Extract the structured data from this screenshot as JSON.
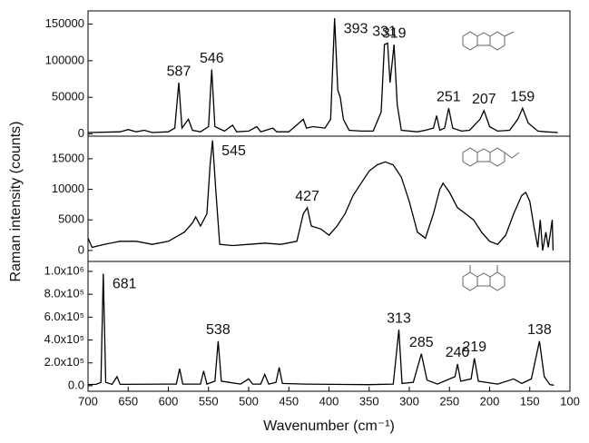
{
  "chart_data": [
    {
      "type": "line",
      "x": [
        700,
        660,
        650,
        640,
        630,
        620,
        600,
        592,
        587,
        583,
        575,
        570,
        560,
        550,
        546,
        542,
        530,
        520,
        515,
        500,
        490,
        485,
        470,
        465,
        450,
        432,
        428,
        420,
        405,
        398,
        393,
        389,
        386,
        382,
        375,
        360,
        345,
        335,
        331,
        327,
        324,
        319,
        315,
        310,
        290,
        280,
        270,
        266,
        262,
        256,
        251,
        246,
        235,
        225,
        212,
        207,
        200,
        190,
        175,
        165,
        159,
        152,
        140,
        130,
        115
      ],
      "series": [
        {
          "color": "#000000",
          "values": [
            2000,
            3000,
            6000,
            3000,
            5000,
            2000,
            3000,
            8000,
            70000,
            8000,
            20000,
            5000,
            3000,
            10000,
            88000,
            10000,
            4000,
            12000,
            3000,
            4000,
            10000,
            3000,
            8000,
            3000,
            3000,
            20000,
            8000,
            10000,
            8000,
            20000,
            158000,
            60000,
            50000,
            20000,
            5000,
            4000,
            4000,
            30000,
            122000,
            124000,
            70000,
            122000,
            40000,
            5000,
            3000,
            5000,
            8000,
            25000,
            5000,
            8000,
            35000,
            8000,
            4000,
            5000,
            20000,
            32000,
            10000,
            4000,
            5000,
            20000,
            35000,
            15000,
            4000,
            3000,
            2000
          ]
        }
      ],
      "xlim": [
        700,
        100
      ],
      "ylim": [
        -3000,
        168000
      ],
      "yticks": [
        0,
        50000,
        100000,
        150000
      ],
      "annotations": [
        {
          "label": "587",
          "x": 587,
          "y": 70000
        },
        {
          "label": "546",
          "x": 546,
          "y": 88000
        },
        {
          "label": "393",
          "x": 393,
          "y": 158000
        },
        {
          "label": "331",
          "x": 331,
          "y": 124000
        },
        {
          "label": "319",
          "x": 319,
          "y": 122000
        },
        {
          "label": "251",
          "x": 251,
          "y": 35000
        },
        {
          "label": "207",
          "x": 207,
          "y": 32000
        },
        {
          "label": "159",
          "x": 159,
          "y": 35000
        }
      ]
    },
    {
      "type": "line",
      "x": [
        700,
        695,
        680,
        660,
        640,
        620,
        600,
        580,
        570,
        566,
        560,
        552,
        548,
        545,
        541,
        536,
        520,
        500,
        480,
        460,
        440,
        432,
        427,
        422,
        410,
        400,
        390,
        380,
        370,
        360,
        350,
        340,
        330,
        320,
        310,
        300,
        290,
        280,
        270,
        262,
        258,
        250,
        240,
        230,
        220,
        210,
        200,
        190,
        180,
        170,
        160,
        155,
        150,
        145,
        140,
        137,
        134,
        130,
        127,
        122,
        121
      ],
      "series": [
        {
          "color": "#000000",
          "values": [
            2000,
            500,
            1000,
            1500,
            1500,
            1000,
            1500,
            3000,
            4500,
            5500,
            4000,
            6000,
            14000,
            18000,
            10000,
            1000,
            800,
            1000,
            1200,
            1000,
            1500,
            6000,
            7000,
            4000,
            3500,
            2500,
            4000,
            6000,
            9000,
            11000,
            13000,
            14000,
            14500,
            14000,
            12000,
            8000,
            3000,
            2000,
            6000,
            10000,
            11000,
            9500,
            7000,
            6000,
            5000,
            3000,
            1500,
            1000,
            2500,
            6000,
            9000,
            9500,
            8000,
            4000,
            500,
            5000,
            0,
            3000,
            500,
            5000,
            0
          ]
        }
      ],
      "xlim": [
        700,
        100
      ],
      "ylim": [
        -1800,
        18700
      ],
      "yticks": [
        0,
        5000,
        10000,
        15000
      ],
      "ylabel": "Raman intensity (counts)",
      "annotations": [
        {
          "label": "545",
          "x": 545,
          "y": 18000
        },
        {
          "label": "427",
          "x": 427,
          "y": 7000
        }
      ]
    },
    {
      "type": "line",
      "x": [
        700,
        690,
        684,
        681,
        678,
        670,
        664,
        660,
        600,
        590,
        586,
        582,
        560,
        556,
        552,
        542,
        538,
        534,
        510,
        500,
        495,
        485,
        480,
        475,
        466,
        462,
        458,
        430,
        350,
        320,
        313,
        309,
        295,
        285,
        278,
        265,
        243,
        240,
        236,
        223,
        219,
        214,
        190,
        170,
        160,
        148,
        138,
        132,
        125,
        120
      ],
      "series": [
        {
          "color": "#000000",
          "values": [
            10000,
            12000,
            30000,
            980000,
            30000,
            12000,
            80000,
            12000,
            15000,
            15000,
            150000,
            15000,
            15000,
            130000,
            15000,
            40000,
            390000,
            40000,
            15000,
            60000,
            15000,
            15000,
            100000,
            15000,
            30000,
            160000,
            20000,
            15000,
            10000,
            15000,
            490000,
            20000,
            30000,
            280000,
            50000,
            15000,
            80000,
            190000,
            40000,
            60000,
            240000,
            40000,
            15000,
            60000,
            20000,
            60000,
            390000,
            80000,
            10000,
            5000
          ]
        }
      ],
      "xlim": [
        700,
        100
      ],
      "ylim": [
        -48000,
        1087000
      ],
      "xticks": [
        700,
        650,
        600,
        550,
        500,
        450,
        400,
        350,
        300,
        250,
        200,
        150,
        100
      ],
      "yticks": [
        {
          "value": 0,
          "label": "0.0"
        },
        {
          "value": 200000,
          "label": "2.0x10⁵"
        },
        {
          "value": 400000,
          "label": "4.0x10⁵"
        },
        {
          "value": 600000,
          "label": "6.0x10⁵"
        },
        {
          "value": 800000,
          "label": "8.0x10⁵"
        },
        {
          "value": 1000000,
          "label": "1.0x10⁶"
        }
      ],
      "xlabel": "Wavenumber (cm⁻¹)",
      "annotations": [
        {
          "label": "681",
          "x": 681,
          "y": 980000
        },
        {
          "label": "538",
          "x": 538,
          "y": 390000
        },
        {
          "label": "313",
          "x": 313,
          "y": 490000
        },
        {
          "label": "285",
          "x": 285,
          "y": 280000
        },
        {
          "label": "240",
          "x": 240,
          "y": 190000
        },
        {
          "label": "219",
          "x": 219,
          "y": 240000
        },
        {
          "label": "138",
          "x": 138,
          "y": 390000
        }
      ]
    }
  ]
}
